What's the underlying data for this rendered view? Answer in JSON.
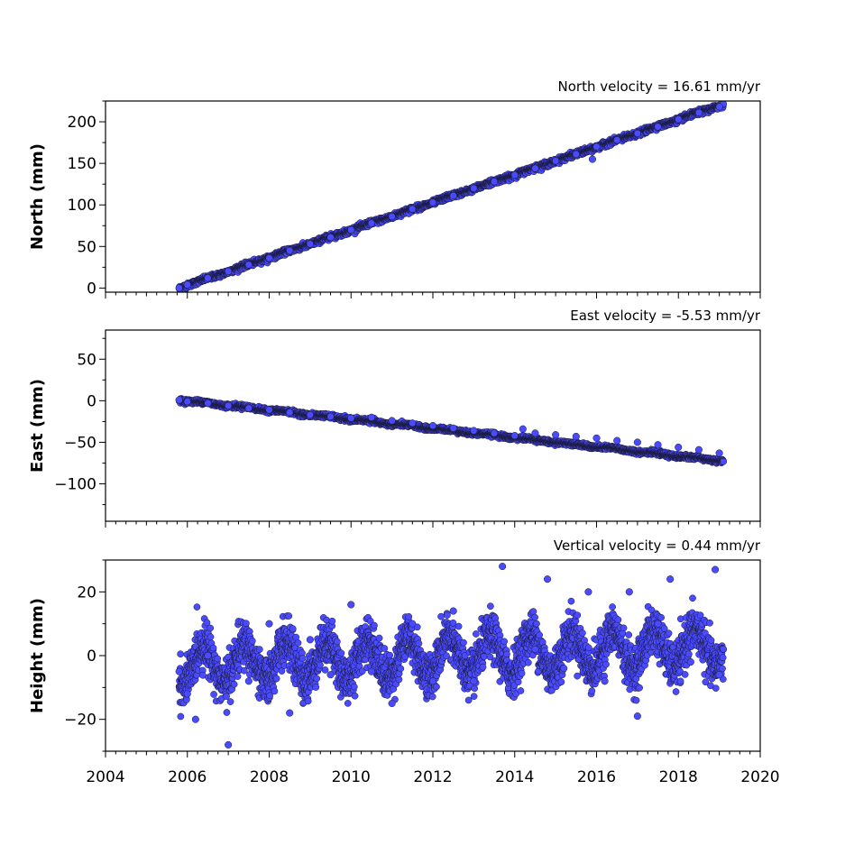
{
  "chart_data": [
    {
      "type": "scatter",
      "title": "North velocity = 16.61 mm/yr",
      "ylabel": "North (mm)",
      "xlim": [
        2004,
        2020
      ],
      "ylim": [
        -5,
        225
      ],
      "yticks": [
        0,
        50,
        100,
        150,
        200
      ],
      "show_x_tick_labels": false,
      "series": [
        {
          "color": "#4a4aff",
          "model": {
            "start": 2005.8,
            "end": 2019.1,
            "y_at_start": 0,
            "rate": 16.61,
            "noise": 1.5,
            "seasonal_amplitude": 0.5
          },
          "points": [
            [
              2005.8,
              0
            ],
            [
              2006.0,
              4
            ],
            [
              2006.5,
              12
            ],
            [
              2007.0,
              20
            ],
            [
              2007.5,
              28
            ],
            [
              2008.0,
              36
            ],
            [
              2008.5,
              45
            ],
            [
              2009.0,
              53
            ],
            [
              2009.5,
              61
            ],
            [
              2010.0,
              70
            ],
            [
              2010.5,
              78
            ],
            [
              2011.0,
              86
            ],
            [
              2011.5,
              95
            ],
            [
              2012.0,
              103
            ],
            [
              2012.5,
              111
            ],
            [
              2013.0,
              120
            ],
            [
              2013.5,
              128
            ],
            [
              2014.0,
              136
            ],
            [
              2014.5,
              144
            ],
            [
              2015.0,
              153
            ],
            [
              2015.5,
              161
            ],
            [
              2015.9,
              155
            ],
            [
              2016.0,
              170
            ],
            [
              2016.5,
              178
            ],
            [
              2017.0,
              186
            ],
            [
              2017.5,
              194
            ],
            [
              2018.0,
              203
            ],
            [
              2018.5,
              211
            ],
            [
              2019.0,
              218
            ]
          ]
        }
      ]
    },
    {
      "type": "scatter",
      "title": "East velocity = -5.53 mm/yr",
      "ylabel": "East (mm)",
      "xlim": [
        2004,
        2020
      ],
      "ylim": [
        -145,
        85
      ],
      "yticks": [
        -100,
        -50,
        0,
        50
      ],
      "show_x_tick_labels": false,
      "series": [
        {
          "color": "#4a4aff",
          "model": {
            "start": 2005.8,
            "end": 2019.1,
            "y_at_start": 1,
            "rate": -5.53,
            "noise": 1.2,
            "seasonal_amplitude": 0.8
          },
          "points": [
            [
              2005.8,
              1
            ],
            [
              2006.0,
              -1
            ],
            [
              2006.5,
              -3
            ],
            [
              2007.0,
              -6
            ],
            [
              2007.5,
              -9
            ],
            [
              2008.0,
              -11
            ],
            [
              2008.5,
              -14
            ],
            [
              2009.0,
              -17
            ],
            [
              2009.5,
              -19
            ],
            [
              2010.0,
              -21
            ],
            [
              2010.5,
              -20
            ],
            [
              2011.0,
              -24
            ],
            [
              2011.5,
              -27
            ],
            [
              2012.0,
              -30
            ],
            [
              2012.5,
              -33
            ],
            [
              2013.0,
              -36
            ],
            [
              2013.5,
              -39
            ],
            [
              2014.0,
              -42
            ],
            [
              2014.2,
              -34
            ],
            [
              2014.5,
              -39
            ],
            [
              2015.0,
              -41
            ],
            [
              2015.5,
              -43
            ],
            [
              2016.0,
              -45
            ],
            [
              2016.5,
              -48
            ],
            [
              2017.0,
              -50
            ],
            [
              2017.5,
              -53
            ],
            [
              2018.0,
              -56
            ],
            [
              2018.5,
              -59
            ],
            [
              2019.0,
              -63
            ]
          ]
        }
      ]
    },
    {
      "type": "scatter",
      "title": "Vertical velocity = 0.44 mm/yr",
      "ylabel": "Height (mm)",
      "xlim": [
        2004,
        2020
      ],
      "ylim": [
        -30,
        30
      ],
      "yticks": [
        -20,
        0,
        20
      ],
      "xticks": [
        2004,
        2006,
        2008,
        2010,
        2012,
        2014,
        2016,
        2018,
        2020
      ],
      "show_x_tick_labels": true,
      "series": [
        {
          "color": "#4a4aff",
          "model": {
            "start": 2005.8,
            "end": 2019.1,
            "y_at_start": -3,
            "rate": 0.44,
            "noise": 3.5,
            "seasonal_amplitude": 6
          },
          "points": [
            [
              2005.8,
              -5
            ],
            [
              2006.0,
              -12
            ],
            [
              2006.2,
              -20
            ],
            [
              2006.5,
              0
            ],
            [
              2007.0,
              -28
            ],
            [
              2007.5,
              -8
            ],
            [
              2008.0,
              10
            ],
            [
              2008.5,
              -18
            ],
            [
              2009.0,
              5
            ],
            [
              2009.5,
              -6
            ],
            [
              2010.0,
              16
            ],
            [
              2010.5,
              -5
            ],
            [
              2011.0,
              -15
            ],
            [
              2011.5,
              10
            ],
            [
              2012.0,
              -8
            ],
            [
              2012.5,
              14
            ],
            [
              2013.0,
              -8
            ],
            [
              2013.7,
              28
            ],
            [
              2014.5,
              2
            ],
            [
              2014.8,
              24
            ],
            [
              2015.2,
              -4
            ],
            [
              2015.8,
              20
            ],
            [
              2016.2,
              -8
            ],
            [
              2016.8,
              20
            ],
            [
              2017.0,
              -19
            ],
            [
              2017.5,
              10
            ],
            [
              2017.8,
              24
            ],
            [
              2018.3,
              -2
            ],
            [
              2018.9,
              27
            ],
            [
              2019.0,
              -6
            ]
          ]
        }
      ]
    }
  ]
}
